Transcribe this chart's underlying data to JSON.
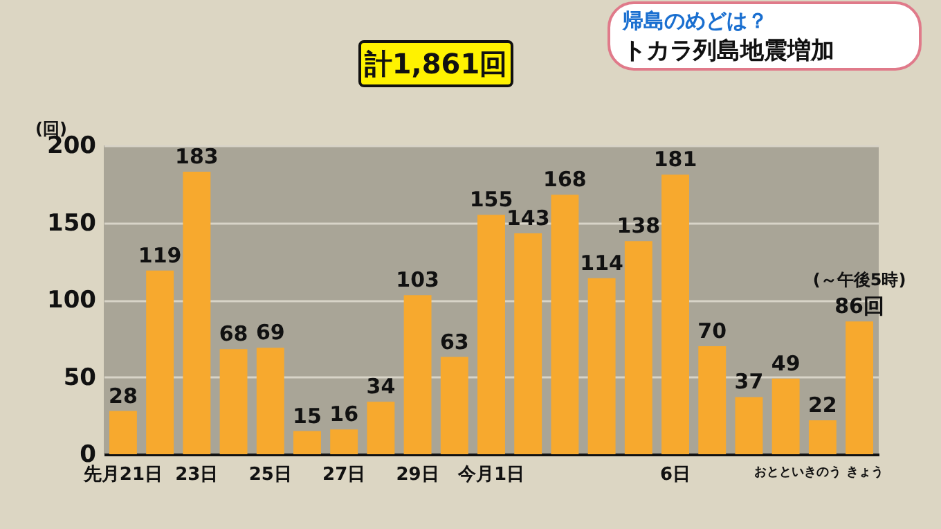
{
  "chart_data": {
    "type": "bar",
    "title": "計1,861回",
    "ylabel": "(回)",
    "annotations": [
      "帰島のめどは？",
      "トカラ列島地震増加",
      "(～午後5時)"
    ],
    "categories": [
      "先月21日",
      null,
      "23日",
      null,
      "25日",
      null,
      "27日",
      null,
      "29日",
      null,
      "今月1日",
      null,
      null,
      null,
      null,
      "6日",
      null,
      null,
      "おととい",
      "きのう",
      "きょう"
    ],
    "values": [
      28,
      119,
      183,
      68,
      69,
      15,
      16,
      34,
      103,
      63,
      155,
      143,
      168,
      114,
      138,
      181,
      70,
      37,
      49,
      22,
      86
    ],
    "value_labels": [
      "28",
      "119",
      "183",
      "68",
      "69",
      "15",
      "16",
      "34",
      "103",
      "63",
      "155",
      "143",
      "168",
      "114",
      "138",
      "181",
      "70",
      "37",
      "49",
      "22",
      "86回"
    ],
    "color": "#f7a92e",
    "ylim": [
      0,
      200
    ],
    "yticks": [
      0,
      50,
      100,
      150,
      200
    ],
    "grid": "y"
  }
}
